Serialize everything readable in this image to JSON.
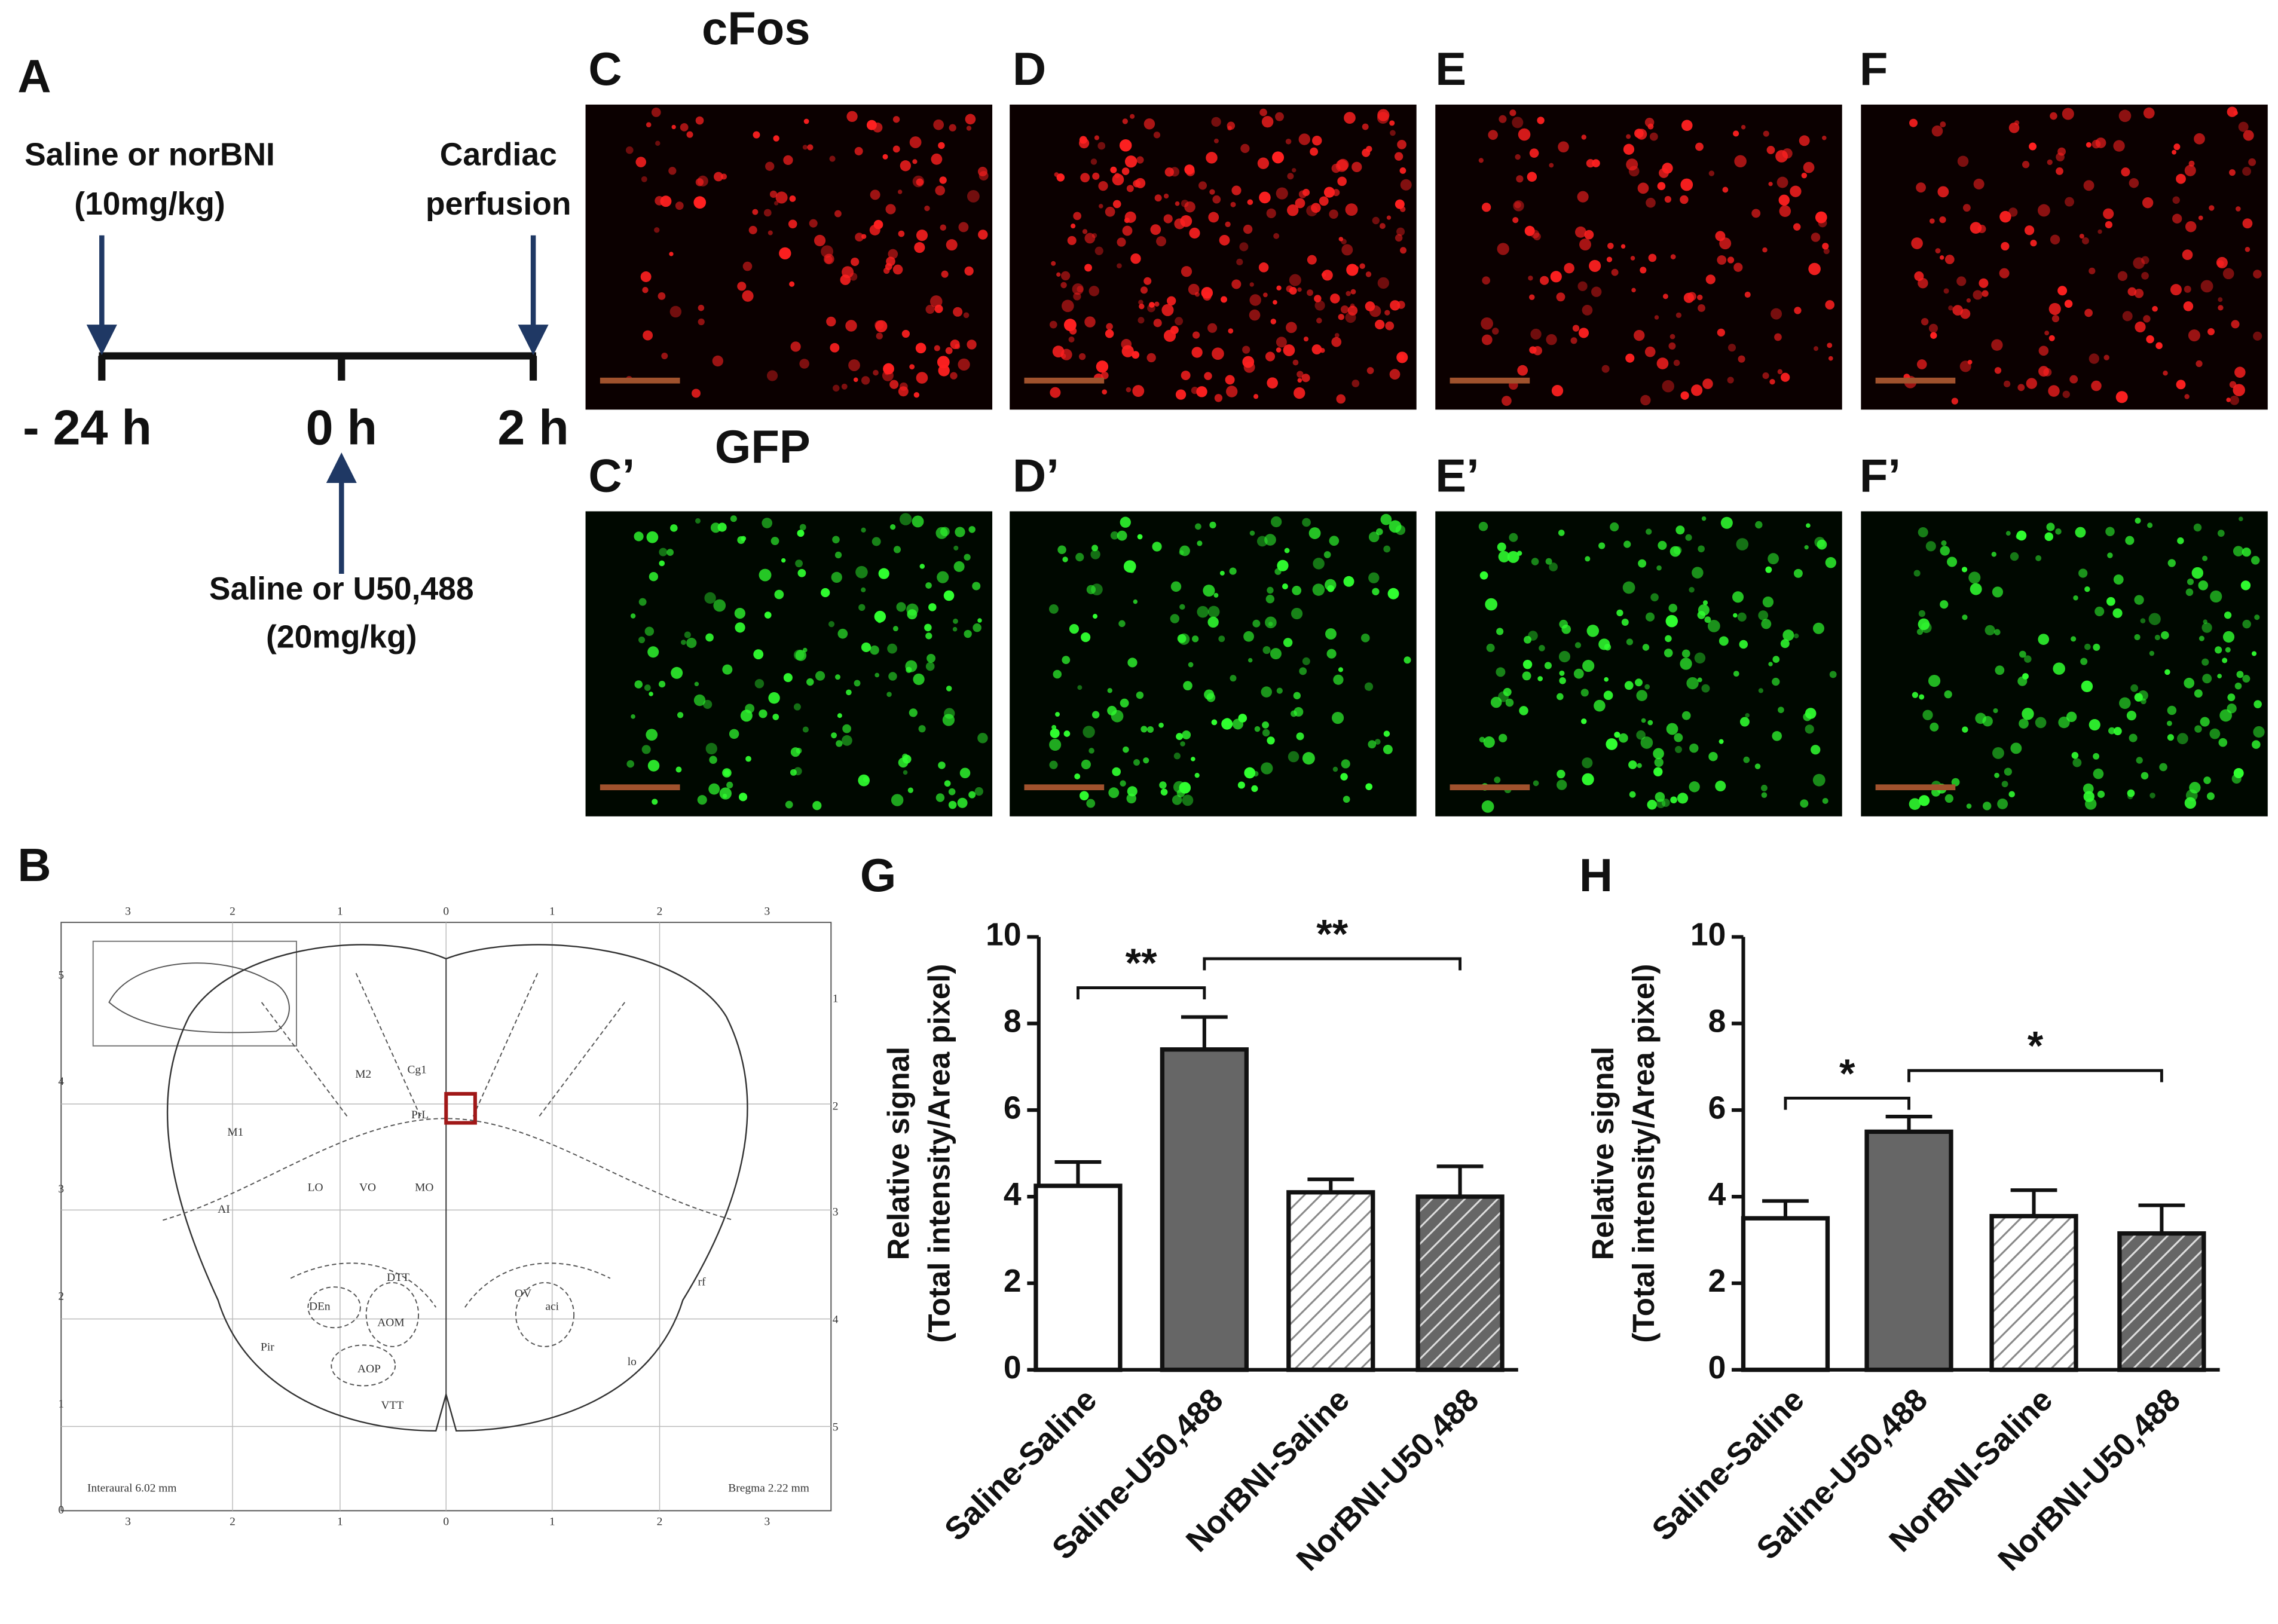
{
  "panels": {
    "a": "A",
    "b": "B",
    "c": "C",
    "d": "D",
    "e": "E",
    "f": "F",
    "c2": "C’",
    "d2": "D’",
    "e2": "E’",
    "f2": "F’",
    "g": "G",
    "h": "H",
    "cfos": "cFos",
    "gfp": "GFP"
  },
  "timeline": {
    "first_drug": [
      "Saline or norBNI",
      "(10mg/kg)"
    ],
    "end": [
      "Cardiac",
      "perfusion"
    ],
    "second_drug": [
      "Saline or U50,488",
      "(20mg/kg)"
    ],
    "times": [
      "- 24 h",
      "0 h",
      "2 h"
    ]
  },
  "atlas": {
    "regions": [
      "M2",
      "Cg1",
      "M1",
      "PrL",
      "LO",
      "VO",
      "MO",
      "AI",
      "DTT",
      "DEn",
      "AOM",
      "AOP",
      "Pir",
      "VTT",
      "OV",
      "aci",
      "lo",
      "rf"
    ],
    "top_scale": [
      "3",
      "2",
      "1",
      "0",
      "1",
      "2",
      "3"
    ],
    "left_scale": [
      "5",
      "4",
      "3",
      "2",
      "1",
      "0"
    ],
    "right_scale": [
      "1",
      "2",
      "3",
      "4",
      "5"
    ],
    "interaural": "Interaural 6.02 mm",
    "bregma": "Bregma 2.22 mm"
  },
  "chart_data": [
    {
      "type": "bar",
      "ylabel": [
        "Relative signal",
        "(Total intensity/Area pixel)"
      ],
      "categories": [
        "Saline-Saline",
        "Saline-U50,488",
        "NorBNI-Saline",
        "NorBNI-U50,488"
      ],
      "values": [
        4.25,
        7.4,
        4.1,
        4.0
      ],
      "errors": [
        0.55,
        0.75,
        0.3,
        0.7
      ],
      "bar_colors": [
        "#ffffff",
        "#666666",
        "#ffffff",
        "#666666"
      ],
      "hatched": [
        false,
        false,
        true,
        true
      ],
      "ylim": [
        0,
        10
      ],
      "yticks": [
        0,
        2,
        4,
        6,
        8,
        10
      ],
      "annotations": [
        "**",
        "**"
      ]
    },
    {
      "type": "bar",
      "ylabel": [
        "Relative signal",
        "(Total intensity/Area pixel)"
      ],
      "categories": [
        "Saline-Saline",
        "Saline-U50,488",
        "NorBNI-Saline",
        "NorBNI-U50,488"
      ],
      "values": [
        3.5,
        5.5,
        3.55,
        3.15
      ],
      "errors": [
        0.4,
        0.35,
        0.6,
        0.65
      ],
      "bar_colors": [
        "#ffffff",
        "#666666",
        "#ffffff",
        "#666666"
      ],
      "hatched": [
        false,
        false,
        true,
        true
      ],
      "ylim": [
        0,
        10
      ],
      "yticks": [
        0,
        2,
        4,
        6,
        8,
        10
      ],
      "annotations": [
        "*",
        "*"
      ]
    }
  ]
}
